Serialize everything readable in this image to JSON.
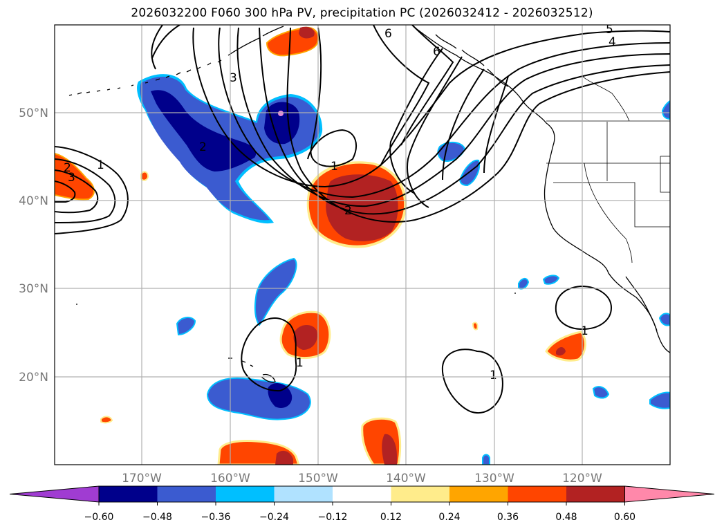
{
  "title": "2026032200 F060 300 hPa PV, precipitation PC (2026032412 - 2026032512)",
  "lon_labels": [
    "170°W",
    "160°W",
    "150°W",
    "140°W",
    "130°W",
    "120°W"
  ],
  "lat_labels": [
    "50°N",
    "40°N",
    "30°N",
    "20°N"
  ],
  "contour_labels": [
    "5",
    "4",
    "6",
    "6",
    "3",
    "2",
    "1",
    "2",
    "3",
    "1",
    "1",
    "2",
    "1",
    "1"
  ],
  "colorbar": {
    "ticks": [
      "−0.60",
      "−0.48",
      "−0.36",
      "−0.24",
      "−0.12",
      "0.12",
      "0.24",
      "0.36",
      "0.48",
      "0.60"
    ],
    "colors": [
      "#a03cd2",
      "#00008b",
      "#3b5bd0",
      "#00bfff",
      "#b0e2ff",
      "#ffffff",
      "#ffec8b",
      "#ffa500",
      "#ff4500",
      "#b22222",
      "#ff88aa"
    ]
  }
}
